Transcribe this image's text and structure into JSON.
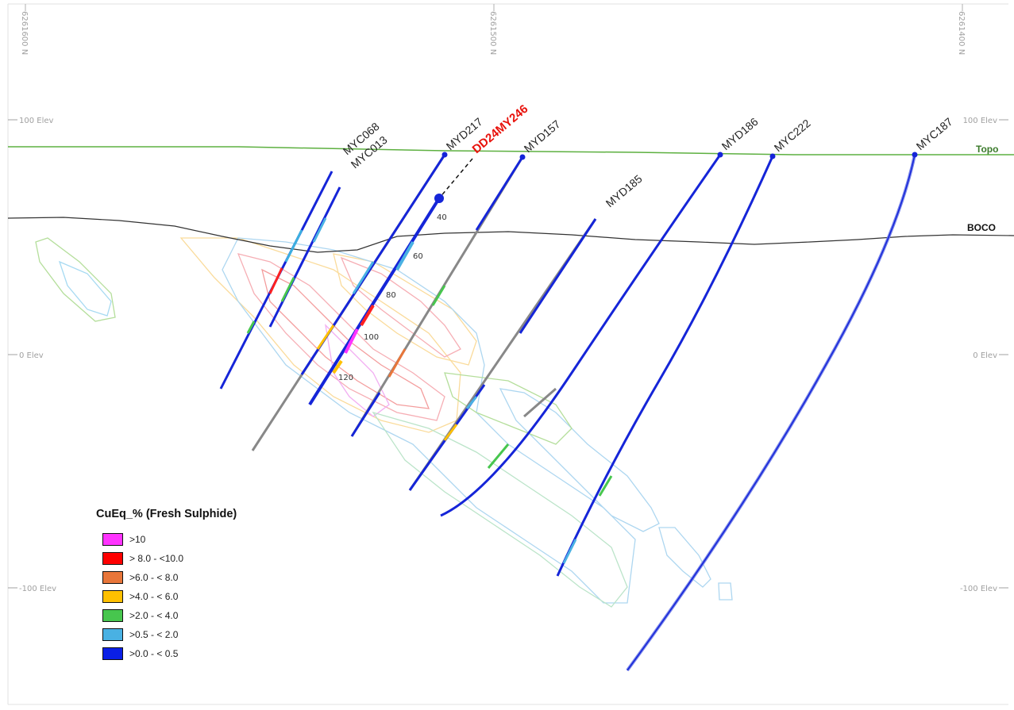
{
  "legend": {
    "title": "CuEq_% (Fresh Sulphide)",
    "items": [
      {
        "label": ">10",
        "color": "#ff33ff"
      },
      {
        "label": "> 8.0 - <10.0",
        "color": "#ff0000"
      },
      {
        "label": ">6.0 - < 8.0",
        "color": "#e8763a"
      },
      {
        "label": ">4.0 - < 6.0",
        "color": "#ffc000"
      },
      {
        "label": ">2.0 - < 4.0",
        "color": "#47c64e"
      },
      {
        "label": ">0.5 - < 2.0",
        "color": "#49b1e3"
      },
      {
        "label": ">0.0 - < 0.5",
        "color": "#0a1fe6"
      }
    ]
  },
  "northings": [
    "6261600 N",
    "6261500 N",
    "6261400 N"
  ],
  "elevations_left": [
    "100 Elev",
    "0 Elev",
    "-100 Elev"
  ],
  "elevations_right": [
    "100 Elev",
    "0 Elev",
    "-100 Elev"
  ],
  "surfaces": {
    "topo": {
      "label": "Topo",
      "color": "#3a7a2a"
    },
    "boco": {
      "label": "BOCO",
      "color": "#111111"
    }
  },
  "drillholes": [
    {
      "id": "MYC068"
    },
    {
      "id": "MYC013"
    },
    {
      "id": "MYD217"
    },
    {
      "id": "DD24MY246",
      "planned": true
    },
    {
      "id": "MYD157"
    },
    {
      "id": "MYD185"
    },
    {
      "id": "MYD186"
    },
    {
      "id": "MYC222"
    },
    {
      "id": "MYC187"
    }
  ],
  "depth_marks": [
    "40",
    "60",
    "80",
    "100",
    "120"
  ]
}
